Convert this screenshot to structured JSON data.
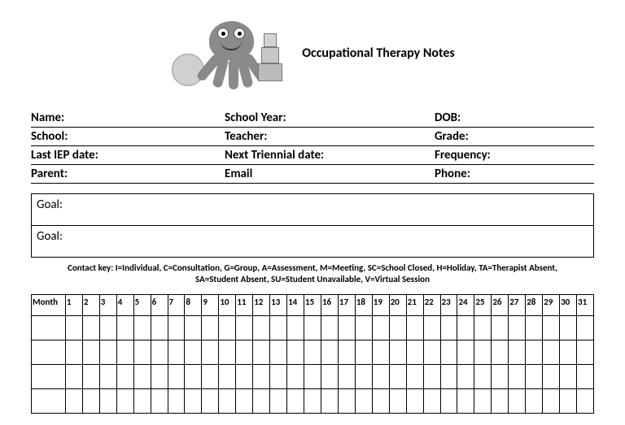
{
  "logo": {
    "alt": "octopus-with-blocks"
  },
  "title": "Occupational Therapy Notes",
  "info": {
    "row1": {
      "c1": "Name:",
      "c2": "School Year:",
      "c3": "DOB:"
    },
    "row2": {
      "c1": "School:",
      "c2": "Teacher:",
      "c3": "Grade:"
    },
    "row3": {
      "c1": "Last IEP date:",
      "c2": "Next Triennial date:",
      "c3": "Frequency:"
    },
    "row4": {
      "c1": "Parent:",
      "c2": "Email",
      "c3": "Phone:"
    }
  },
  "goals": {
    "g1": "Goal:",
    "g2": "Goal:"
  },
  "contactKey": {
    "line1": "Contact key: I=Individual,  C=Consultation,  G=Group,  A=Assessment, M=Meeting,  SC=School Closed, H=Holiday, TA=Therapist Absent,",
    "line2": "SA=Student Absent,  SU=Student Unavailable, V=Virtual Session"
  },
  "calendar": {
    "monthHeader": "Month",
    "days": [
      "1",
      "2",
      "3",
      "4",
      "5",
      "6",
      "7",
      "8",
      "9",
      "10",
      "11",
      "12",
      "13",
      "14",
      "15",
      "16",
      "17",
      "18",
      "19",
      "20",
      "21",
      "22",
      "23",
      "24",
      "25",
      "26",
      "27",
      "28",
      "29",
      "30",
      "31"
    ],
    "bodyRows": 4
  },
  "styling": {
    "background_color": "#ffffff",
    "text_color": "#000000",
    "border_color": "#000000",
    "title_fontsize": 16,
    "info_fontsize": 15,
    "goal_fontsize": 15,
    "key_fontsize": 11,
    "calendar_fontsize": 11,
    "font_family": "Calibri, Arial, sans-serif"
  }
}
